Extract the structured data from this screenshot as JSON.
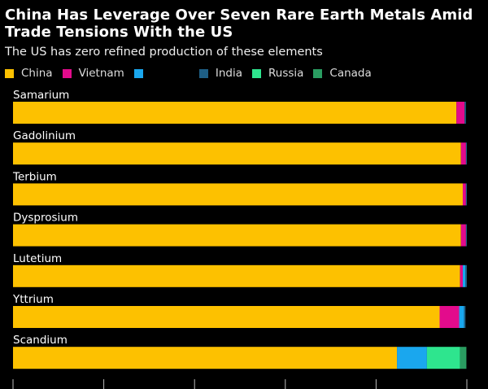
{
  "chart_data": {
    "type": "bar",
    "orientation": "horizontal",
    "stacked": true,
    "title": "China Has Leverage Over Seven Rare Earth Metals Amid Trade Tensions With the US",
    "subtitle": "The US has zero refined production of these elements",
    "xlim": [
      0,
      100
    ],
    "categories": [
      "Samarium",
      "Gadolinium",
      "Terbium",
      "Dysprosium",
      "Lutetium",
      "Yttrium",
      "Scandium"
    ],
    "series": [
      {
        "name": "China",
        "color": "#FDC100",
        "values": [
          97.7,
          98.7,
          99.1,
          98.7,
          98.5,
          94.0,
          84.6
        ]
      },
      {
        "name": "Vietnam",
        "color": "#E30B8C",
        "values": [
          1.8,
          1.1,
          0.7,
          1.1,
          0.6,
          4.3,
          0.0
        ]
      },
      {
        "name": "",
        "color": "#1AA7EE",
        "values": [
          0.0,
          0.0,
          0.0,
          0.0,
          0.6,
          1.1,
          6.6
        ]
      },
      {
        "name": "India",
        "color": "#1E5F86",
        "values": [
          0.3,
          0.2,
          0.2,
          0.2,
          0.3,
          0.3,
          0.0
        ]
      },
      {
        "name": "Russia",
        "color": "#2EE58E",
        "values": [
          0.0,
          0.0,
          0.0,
          0.0,
          0.0,
          0.0,
          7.3
        ]
      },
      {
        "name": "Canada",
        "color": "#2A9D61",
        "values": [
          0.0,
          0.0,
          0.0,
          0.0,
          0.0,
          0.0,
          1.4
        ]
      }
    ],
    "grid": false
  }
}
